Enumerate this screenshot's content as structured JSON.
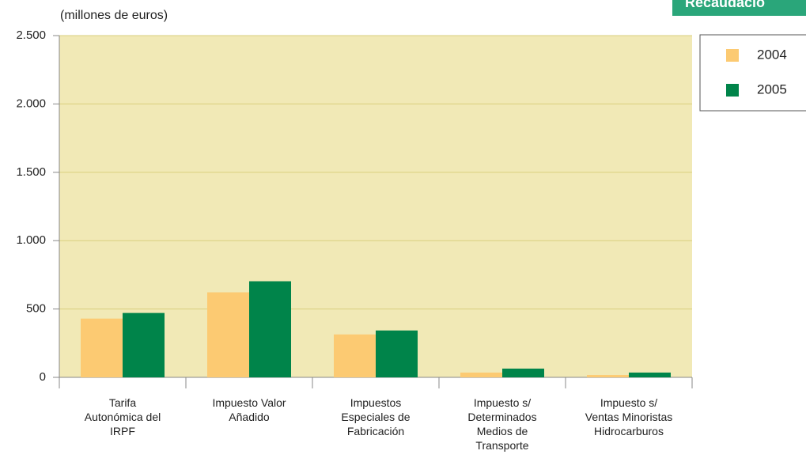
{
  "chart_data": {
    "type": "bar",
    "title": "Recaudació",
    "ylabel": "(millones de euros)",
    "categories": [
      "Tarifa\nAutonómica del\nIRPF",
      "Impuesto Valor\nAñadido",
      "Impuestos\nEspeciales de\nFabricación",
      "Impuesto s/\nDeterminados\nMedios de\nTransporte",
      "Impuesto s/\nVentas Minoristas\nHidrocarburos"
    ],
    "series": [
      {
        "name": "2004",
        "color": "#fcca72",
        "values": [
          430,
          622,
          314,
          35,
          17
        ]
      },
      {
        "name": "2005",
        "color": "#00844a",
        "values": [
          471,
          703,
          343,
          64,
          35
        ]
      }
    ],
    "ylim": [
      0,
      2500
    ],
    "yticks": [
      0,
      500,
      {
        "value": 1000,
        "label": "1.000"
      },
      {
        "value": 1500,
        "label": "1.500"
      },
      {
        "value": 2000,
        "label": "2.000"
      },
      {
        "value": 2500,
        "label": "2.500"
      }
    ],
    "grid": true,
    "legend": "right"
  }
}
